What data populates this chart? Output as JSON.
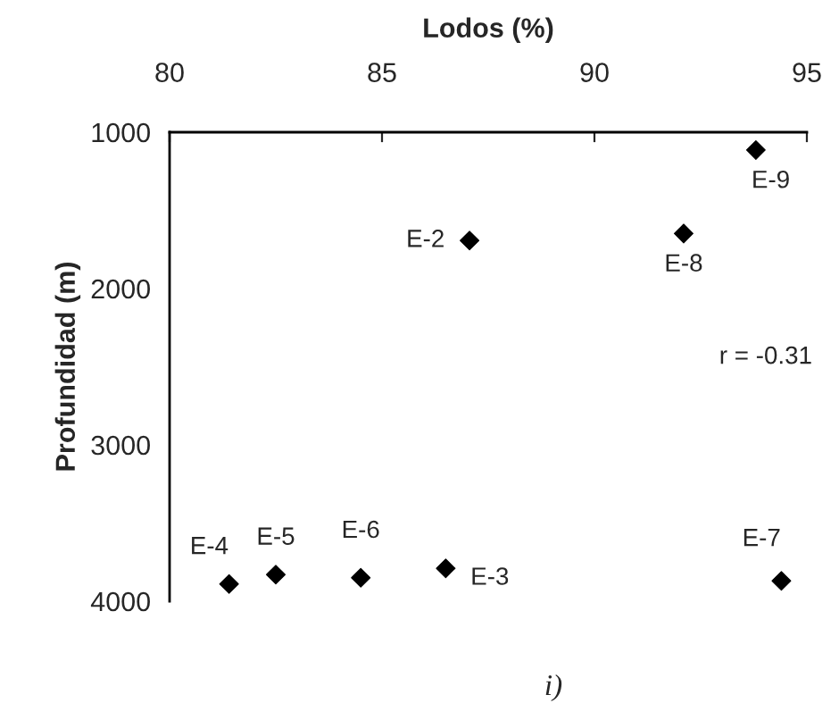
{
  "chart_data": {
    "type": "scatter",
    "xlabel": "Lodos (%)",
    "ylabel": "Profundidad (m)",
    "x": [
      87.06,
      92.1,
      93.8,
      81.4,
      82.5,
      84.5,
      86.5,
      94.4
    ],
    "values": [
      1693,
      1648,
      1114,
      3890,
      3830,
      3850,
      3790,
      3870
    ],
    "color": "#000000",
    "marker": "diamond",
    "grid": false,
    "legend": false,
    "xlim": [
      80,
      95
    ],
    "xticks": [
      80,
      85,
      90,
      95
    ],
    "ylim": [
      4000,
      1000
    ],
    "yticks": [
      1000,
      2000,
      3000,
      4000
    ],
    "annotations": [
      {
        "text": "E-2",
        "x": 87.06,
        "y": 1693
      },
      {
        "text": "E-8",
        "x": 92.1,
        "y": 1648
      },
      {
        "text": "E-9",
        "x": 93.8,
        "y": 1114
      },
      {
        "text": "E-4",
        "x": 81.4,
        "y": 3890
      },
      {
        "text": "E-5",
        "x": 82.5,
        "y": 3830
      },
      {
        "text": "E-6",
        "x": 84.5,
        "y": 3850
      },
      {
        "text": "E-3",
        "x": 86.5,
        "y": 3790
      },
      {
        "text": "E-7",
        "x": 94.4,
        "y": 3870
      },
      "r = -0.31",
      "i)"
    ]
  }
}
